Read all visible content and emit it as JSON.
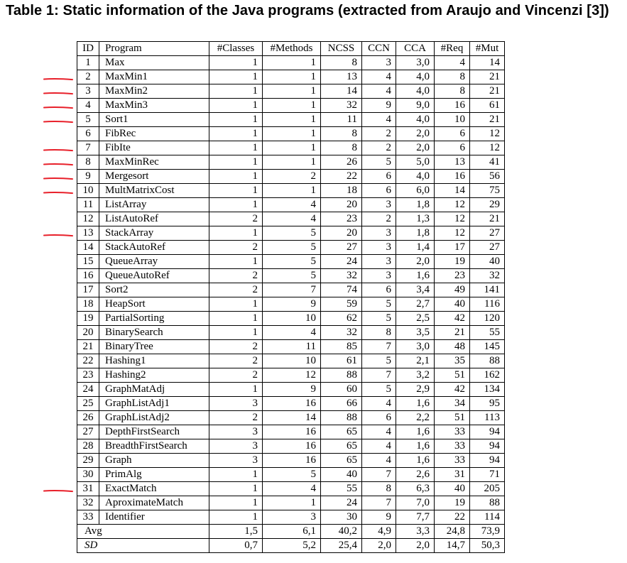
{
  "caption": "Table 1: Static information of the Java programs (extracted from Araujo and Vincenzi [3])",
  "headers": [
    "ID",
    "Program",
    "#Classes",
    "#Methods",
    "NCSS",
    "CCN",
    "CCA",
    "#Req",
    "#Mut"
  ],
  "rows": [
    [
      "1",
      "Max",
      "1",
      "1",
      "8",
      "3",
      "3,0",
      "4",
      "14"
    ],
    [
      "2",
      "MaxMin1",
      "1",
      "1",
      "13",
      "4",
      "4,0",
      "8",
      "21"
    ],
    [
      "3",
      "MaxMin2",
      "1",
      "1",
      "14",
      "4",
      "4,0",
      "8",
      "21"
    ],
    [
      "4",
      "MaxMin3",
      "1",
      "1",
      "32",
      "9",
      "9,0",
      "16",
      "61"
    ],
    [
      "5",
      "Sort1",
      "1",
      "1",
      "11",
      "4",
      "4,0",
      "10",
      "21"
    ],
    [
      "6",
      "FibRec",
      "1",
      "1",
      "8",
      "2",
      "2,0",
      "6",
      "12"
    ],
    [
      "7",
      "FibIte",
      "1",
      "1",
      "8",
      "2",
      "2,0",
      "6",
      "12"
    ],
    [
      "8",
      "MaxMinRec",
      "1",
      "1",
      "26",
      "5",
      "5,0",
      "13",
      "41"
    ],
    [
      "9",
      "Mergesort",
      "1",
      "2",
      "22",
      "6",
      "4,0",
      "16",
      "56"
    ],
    [
      "10",
      "MultMatrixCost",
      "1",
      "1",
      "18",
      "6",
      "6,0",
      "14",
      "75"
    ],
    [
      "11",
      "ListArray",
      "1",
      "4",
      "20",
      "3",
      "1,8",
      "12",
      "29"
    ],
    [
      "12",
      "ListAutoRef",
      "2",
      "4",
      "23",
      "2",
      "1,3",
      "12",
      "21"
    ],
    [
      "13",
      "StackArray",
      "1",
      "5",
      "20",
      "3",
      "1,8",
      "12",
      "27"
    ],
    [
      "14",
      "StackAutoRef",
      "2",
      "5",
      "27",
      "3",
      "1,4",
      "17",
      "27"
    ],
    [
      "15",
      "QueueArray",
      "1",
      "5",
      "24",
      "3",
      "2,0",
      "19",
      "40"
    ],
    [
      "16",
      "QueueAutoRef",
      "2",
      "5",
      "32",
      "3",
      "1,6",
      "23",
      "32"
    ],
    [
      "17",
      "Sort2",
      "2",
      "7",
      "74",
      "6",
      "3,4",
      "49",
      "141"
    ],
    [
      "18",
      "HeapSort",
      "1",
      "9",
      "59",
      "5",
      "2,7",
      "40",
      "116"
    ],
    [
      "19",
      "PartialSorting",
      "1",
      "10",
      "62",
      "5",
      "2,5",
      "42",
      "120"
    ],
    [
      "20",
      "BinarySearch",
      "1",
      "4",
      "32",
      "8",
      "3,5",
      "21",
      "55"
    ],
    [
      "21",
      "BinaryTree",
      "2",
      "11",
      "85",
      "7",
      "3,0",
      "48",
      "145"
    ],
    [
      "22",
      "Hashing1",
      "2",
      "10",
      "61",
      "5",
      "2,1",
      "35",
      "88"
    ],
    [
      "23",
      "Hashing2",
      "2",
      "12",
      "88",
      "7",
      "3,2",
      "51",
      "162"
    ],
    [
      "24",
      "GraphMatAdj",
      "1",
      "9",
      "60",
      "5",
      "2,9",
      "42",
      "134"
    ],
    [
      "25",
      "GraphListAdj1",
      "3",
      "16",
      "66",
      "4",
      "1,6",
      "34",
      "95"
    ],
    [
      "26",
      "GraphListAdj2",
      "2",
      "14",
      "88",
      "6",
      "2,2",
      "51",
      "113"
    ],
    [
      "27",
      "DepthFirstSearch",
      "3",
      "16",
      "65",
      "4",
      "1,6",
      "33",
      "94"
    ],
    [
      "28",
      "BreadthFirstSearch",
      "3",
      "16",
      "65",
      "4",
      "1,6",
      "33",
      "94"
    ],
    [
      "29",
      "Graph",
      "3",
      "16",
      "65",
      "4",
      "1,6",
      "33",
      "94"
    ],
    [
      "30",
      "PrimAlg",
      "1",
      "5",
      "40",
      "7",
      "2,6",
      "31",
      "71"
    ],
    [
      "31",
      "ExactMatch",
      "1",
      "4",
      "55",
      "8",
      "6,3",
      "40",
      "205"
    ],
    [
      "32",
      "AproximateMatch",
      "1",
      "1",
      "24",
      "7",
      "7,0",
      "19",
      "88"
    ],
    [
      "33",
      "Identifier",
      "1",
      "3",
      "30",
      "9",
      "7,7",
      "22",
      "114"
    ]
  ],
  "footer": [
    [
      "Avg",
      "1,5",
      "6,1",
      "40,2",
      "4,9",
      "3,3",
      "24,8",
      "73,9"
    ],
    [
      "SD",
      "0,7",
      "5,2",
      "25,4",
      "2,0",
      "2,0",
      "14,7",
      "50,3"
    ]
  ],
  "annotation_color": "#e8202a",
  "annotated_row_ids": [
    "2",
    "3",
    "4",
    "5",
    "7",
    "8",
    "9",
    "10",
    "13",
    "31"
  ]
}
